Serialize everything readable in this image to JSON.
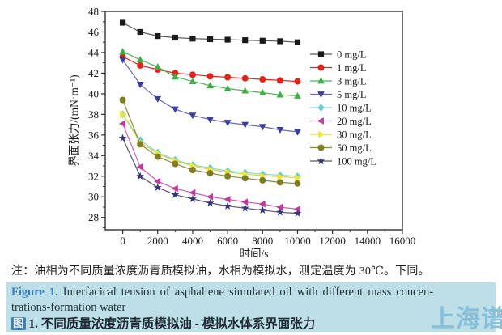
{
  "figure": {
    "note": "注：油相为不同质量浓度沥青质模拟油，水相为模拟水，测定温度为 30℃。下同。",
    "caption_en_label": "Figure 1.",
    "caption_en_line1_rest": " Interfacical tension of asphaltene simulated oil with different mass concen-",
    "caption_en_line2": "trations-formation water",
    "caption_cn_marker": "图",
    "caption_cn_rest": " 1. 不同质量浓度沥青质模拟油 - 模拟水体系界面张力",
    "watermark_text": "上海谱",
    "highlight_color": "#bcdfe8",
    "caption_label_color": "#3f7cb5",
    "watermark_color": "#85bdd8"
  },
  "chart_data": {
    "type": "line",
    "title": "",
    "xlabel": "时间/s",
    "ylabel": "界面张力/(mN·m⁻¹)",
    "xlim": [
      -1000,
      16000
    ],
    "ylim": [
      26.8,
      48
    ],
    "x_ticks": [
      0,
      2000,
      4000,
      6000,
      8000,
      10000,
      12000,
      14000,
      16000
    ],
    "x_minor_ticks": [
      1000,
      3000,
      5000,
      7000,
      9000,
      11000,
      13000,
      15000
    ],
    "y_ticks": [
      28,
      30,
      32,
      34,
      36,
      38,
      40,
      42,
      44,
      46,
      48
    ],
    "y_minor_ticks": [
      27,
      29,
      31,
      33,
      35,
      37,
      39,
      41,
      43,
      45,
      47
    ],
    "grid": false,
    "legend_position": "inside-right",
    "axis_color": "#333333",
    "x": [
      0,
      1000,
      2000,
      3000,
      4000,
      5000,
      6000,
      7000,
      8000,
      9000,
      10000
    ],
    "series": [
      {
        "name": "0 mg/L",
        "marker": "square",
        "color": "#1a1a1a",
        "line_color": "#5a5a5a",
        "values": [
          46.9,
          46.0,
          45.6,
          45.45,
          45.35,
          45.3,
          45.25,
          45.2,
          45.15,
          45.1,
          45.0
        ]
      },
      {
        "name": "1 mg/L",
        "marker": "circle",
        "color": "#e2231a",
        "line_color": "#e2231a",
        "values": [
          43.6,
          42.75,
          42.35,
          42.0,
          41.85,
          41.7,
          41.6,
          41.5,
          41.4,
          41.3,
          41.2
        ]
      },
      {
        "name": "3 mg/L",
        "marker": "triangle-up",
        "color": "#3fae49",
        "line_color": "#52b156",
        "values": [
          44.1,
          43.3,
          42.6,
          41.65,
          41.2,
          40.8,
          40.5,
          40.3,
          40.1,
          39.9,
          39.8
        ]
      },
      {
        "name": "5 mg/L",
        "marker": "triangle-down",
        "color": "#3c3c9e",
        "line_color": "#6a6ab0",
        "values": [
          43.3,
          40.9,
          39.5,
          38.5,
          37.9,
          37.5,
          37.2,
          37.0,
          36.8,
          36.5,
          36.3
        ]
      },
      {
        "name": "10 mg/L",
        "marker": "diamond",
        "color": "#6bcbd3",
        "line_color": "#8ed4da",
        "values": [
          38.0,
          35.5,
          34.3,
          33.6,
          33.1,
          32.8,
          32.5,
          32.35,
          32.2,
          32.1,
          32.0
        ]
      },
      {
        "name": "20 mg/L",
        "marker": "triangle-left",
        "color": "#c03a9b",
        "line_color": "#c95fae",
        "values": [
          37.1,
          32.9,
          31.5,
          30.8,
          30.4,
          30.0,
          29.75,
          29.5,
          29.3,
          29.0,
          28.8
        ]
      },
      {
        "name": "30 mg/L",
        "marker": "triangle-right",
        "color": "#f0e636",
        "line_color": "#d9d23a",
        "values": [
          38.0,
          35.3,
          34.2,
          33.5,
          33.0,
          32.65,
          32.4,
          32.2,
          32.05,
          31.95,
          31.85
        ]
      },
      {
        "name": "50 mg/L",
        "marker": "circle",
        "color": "#7e7d22",
        "line_color": "#8a893c",
        "values": [
          39.4,
          35.1,
          33.9,
          33.2,
          32.6,
          32.3,
          32.0,
          31.8,
          31.6,
          31.4,
          31.3
        ]
      },
      {
        "name": "100 mg/L",
        "marker": "star",
        "color": "#34347a",
        "line_color": "#55557a",
        "values": [
          35.7,
          32.0,
          30.9,
          30.2,
          29.8,
          29.4,
          29.1,
          28.9,
          28.7,
          28.5,
          28.4
        ]
      }
    ]
  }
}
